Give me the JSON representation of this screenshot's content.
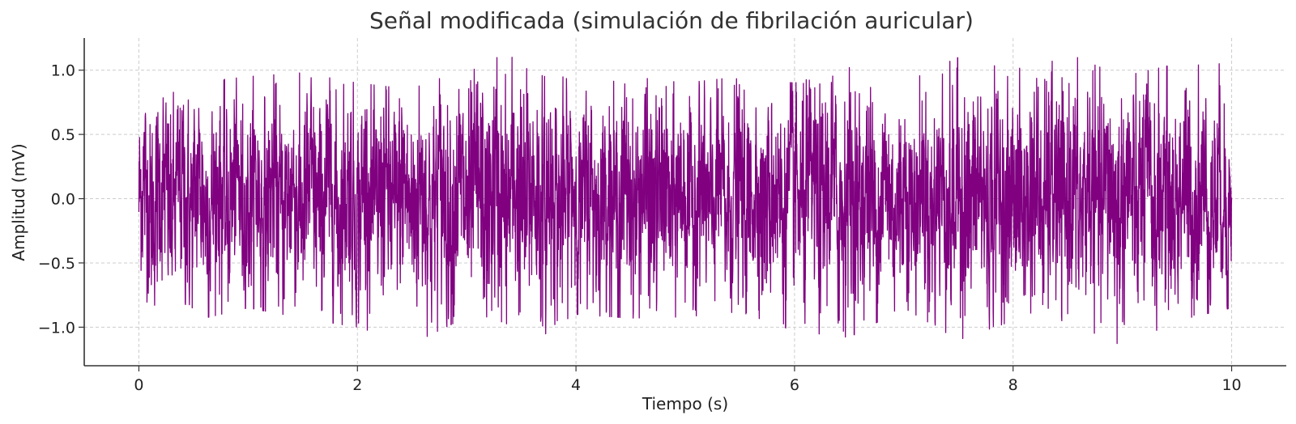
{
  "chart_data": {
    "type": "line",
    "title": "Señal modificada (simulación de fibrilación auricular)",
    "xlabel": "Tiempo (s)",
    "ylabel": "Amplitud (mV)",
    "xlim": [
      -0.5,
      10.5
    ],
    "ylim": [
      -1.3,
      1.25
    ],
    "xticks": [
      0,
      2,
      4,
      6,
      8,
      10
    ],
    "xtick_labels": [
      "0",
      "2",
      "4",
      "6",
      "8",
      "10"
    ],
    "yticks": [
      1.0,
      0.5,
      0.0,
      -0.5,
      -1.0
    ],
    "ytick_labels": [
      "1.0",
      "0.5",
      "0.0",
      "−0.5",
      "−1.0"
    ],
    "grid": true,
    "series": [
      {
        "color": "#800080",
        "x_range": [
          0,
          10
        ],
        "description_note": "",
        "envelope": {
          "x": [
            0,
            0.5,
            1,
            1.5,
            2,
            2.5,
            3,
            3.5,
            4,
            4.5,
            5,
            5.5,
            6,
            6.5,
            7,
            7.5,
            8,
            8.5,
            9,
            9.5,
            10
          ],
          "max": [
            0.93,
            0.9,
            0.95,
            0.98,
            0.9,
            0.85,
            1.1,
            1.1,
            0.9,
            0.95,
            0.9,
            0.95,
            0.9,
            1.02,
            0.9,
            1.1,
            1.0,
            1.13,
            0.95,
            1.05,
            1.05
          ],
          "min": [
            -0.78,
            -0.95,
            -0.85,
            -0.93,
            -1.0,
            -1.13,
            -0.92,
            -1.18,
            -0.9,
            -0.93,
            -0.92,
            -0.88,
            -1.03,
            -1.08,
            -0.85,
            -1.1,
            -0.95,
            -0.95,
            -1.15,
            -0.95,
            -0.85
          ]
        }
      }
    ]
  }
}
